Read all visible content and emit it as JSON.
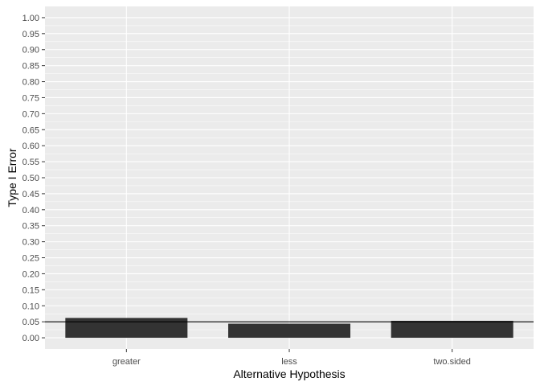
{
  "chart_data": {
    "type": "bar",
    "categories": [
      "greater",
      "less",
      "two.sided"
    ],
    "values": [
      0.062,
      0.044,
      0.053
    ],
    "reference_line": 0.05,
    "xlabel": "Alternative Hypothesis",
    "ylabel": "Type I Error",
    "ylim": [
      -0.035,
      1.035
    ],
    "yticks": [
      "0.00",
      "0.05",
      "0.10",
      "0.15",
      "0.20",
      "0.25",
      "0.30",
      "0.35",
      "0.40",
      "0.45",
      "0.50",
      "0.55",
      "0.60",
      "0.65",
      "0.70",
      "0.75",
      "0.80",
      "0.85",
      "0.90",
      "0.95",
      "1.00"
    ],
    "grid": true,
    "theme": "ggplot2 grey",
    "colors": {
      "panel_bg": "#ebebeb",
      "grid_major": "#ffffff",
      "bar": "#333333",
      "reference_line": "#000000",
      "axis_text": "#4d4d4d",
      "axis_title": "#000000"
    }
  }
}
